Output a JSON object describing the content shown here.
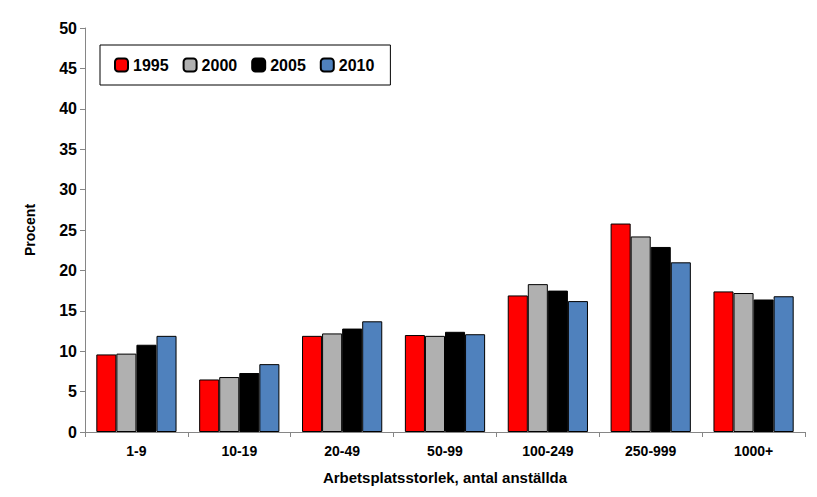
{
  "chart_data": {
    "type": "bar",
    "x_label": "Arbetsplatsstorlek, antal anställda",
    "y_label": "Procent",
    "categories": [
      "1-9",
      "10-19",
      "20-49",
      "50-99",
      "100-249",
      "250-999",
      "1000+"
    ],
    "series": [
      {
        "name": "1995",
        "color": "#ff0000",
        "values": [
          9.6,
          6.5,
          11.9,
          12.0,
          16.9,
          25.8,
          17.4
        ]
      },
      {
        "name": "2000",
        "color": "#b0b0b0",
        "values": [
          9.7,
          6.8,
          12.2,
          11.9,
          18.3,
          24.2,
          17.2
        ]
      },
      {
        "name": "2005",
        "color": "#000000",
        "values": [
          10.8,
          7.3,
          12.8,
          12.4,
          17.5,
          22.9,
          16.4
        ]
      },
      {
        "name": "2010",
        "color": "#4f81bd",
        "values": [
          11.9,
          8.4,
          13.7,
          12.1,
          16.2,
          21.0,
          16.8
        ]
      }
    ],
    "ylim": [
      0,
      50
    ],
    "yticks": [
      0,
      5,
      10,
      15,
      20,
      25,
      30,
      35,
      40,
      45,
      50
    ],
    "grid": false,
    "legend": "upper left"
  }
}
